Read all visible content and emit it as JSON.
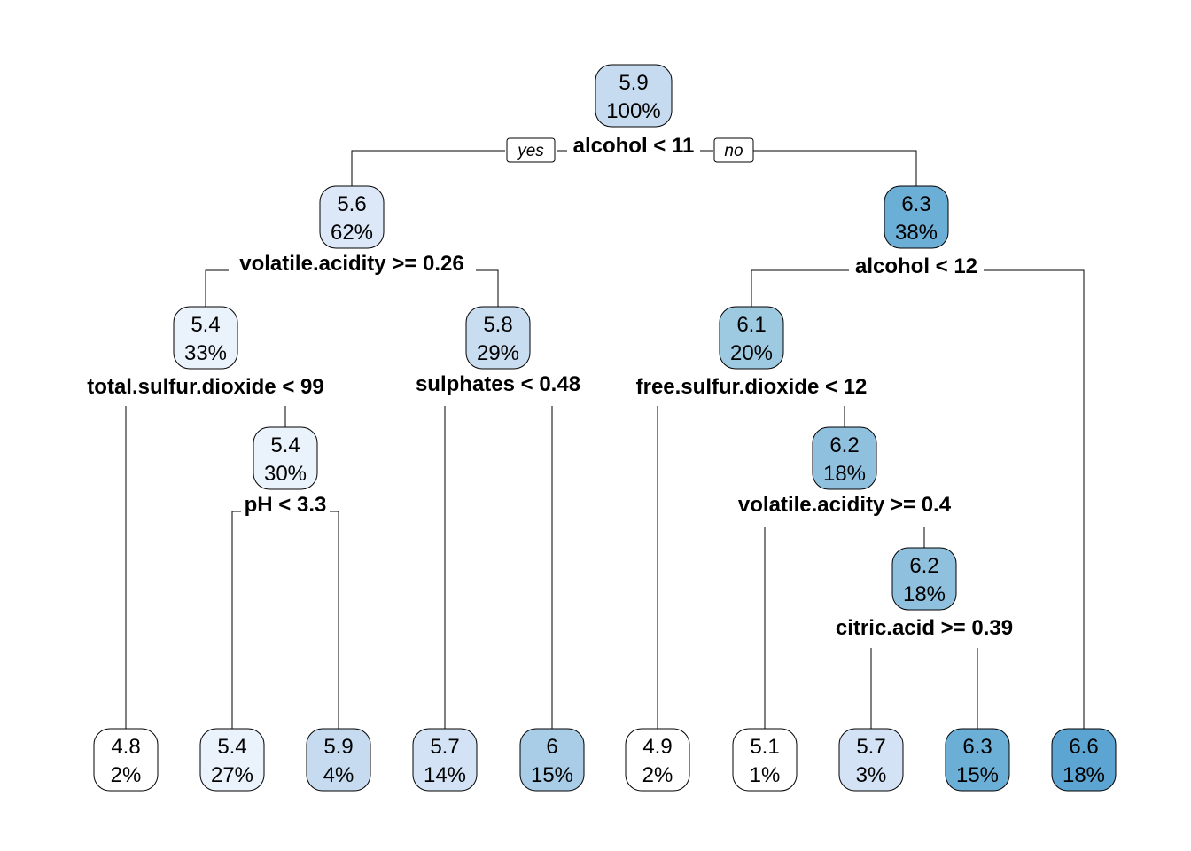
{
  "tree": {
    "branch_labels": {
      "yes": "yes",
      "no": "no"
    },
    "palette": {
      "4.8": "#ffffff",
      "4.9": "#ffffff",
      "5.1": "#ffffff",
      "5.4": "#eaf2fb",
      "5.6": "#dce8f7",
      "5.7": "#d3e3f5",
      "5.8": "#c9ddf1",
      "5.9": "#c6dbef",
      "6": "#a9cde6",
      "6.1": "#9ecae1",
      "6.2": "#8fc1df",
      "6.3": "#6baed6",
      "6.6": "#5ca4d2"
    },
    "nodes": [
      {
        "id": "n0",
        "value": "5.9",
        "pct": "100%",
        "split": "alcohol < 11"
      },
      {
        "id": "n1",
        "value": "5.6",
        "pct": "62%",
        "split": "volatile.acidity >= 0.26"
      },
      {
        "id": "n2",
        "value": "6.3",
        "pct": "38%",
        "split": "alcohol < 12"
      },
      {
        "id": "n3",
        "value": "5.4",
        "pct": "33%",
        "split": "total.sulfur.dioxide < 99"
      },
      {
        "id": "n4",
        "value": "5.8",
        "pct": "29%",
        "split": "sulphates < 0.48"
      },
      {
        "id": "n5",
        "value": "6.1",
        "pct": "20%",
        "split": "free.sulfur.dioxide < 12"
      },
      {
        "id": "n6",
        "value": "5.4",
        "pct": "30%",
        "split": "pH < 3.3"
      },
      {
        "id": "n7",
        "value": "6.2",
        "pct": "18%",
        "split": "volatile.acidity >= 0.4"
      },
      {
        "id": "n8",
        "value": "6.2",
        "pct": "18%",
        "split": "citric.acid >= 0.39"
      },
      {
        "id": "l1",
        "value": "4.8",
        "pct": "2%"
      },
      {
        "id": "l2",
        "value": "5.4",
        "pct": "27%"
      },
      {
        "id": "l3",
        "value": "5.9",
        "pct": "4%"
      },
      {
        "id": "l4",
        "value": "5.7",
        "pct": "14%"
      },
      {
        "id": "l5",
        "value": "6",
        "pct": "15%"
      },
      {
        "id": "l6",
        "value": "4.9",
        "pct": "2%"
      },
      {
        "id": "l7",
        "value": "5.1",
        "pct": "1%"
      },
      {
        "id": "l8",
        "value": "5.7",
        "pct": "3%"
      },
      {
        "id": "l9",
        "value": "6.3",
        "pct": "15%"
      },
      {
        "id": "l10",
        "value": "6.6",
        "pct": "18%"
      }
    ]
  }
}
